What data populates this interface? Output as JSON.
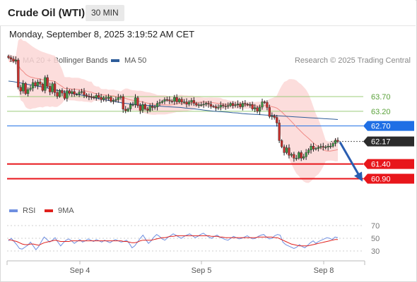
{
  "header": {
    "instrument": "Crude Oil (WTI)",
    "timeframe": "30 MIN",
    "datetime": "Monday, September 8, 2025 3:19:52 AM CET"
  },
  "main_legend": [
    {
      "label": "MA 20 + Bollinger Bands",
      "color": "#f08a86"
    },
    {
      "label": "MA 50",
      "color": "#2e5d9a"
    }
  ],
  "credit": "Research © 2025 Trading Central",
  "rsi_legend": [
    {
      "label": "RSI",
      "color": "#6f8fe0"
    },
    {
      "label": "9MA",
      "color": "#e0201c"
    }
  ],
  "chart_data": [
    {
      "type": "line",
      "subtype": "candlestick",
      "ylim": [
        60.55,
        64.35
      ],
      "xlabel": "",
      "ylabel": "",
      "x_tick_labels": [
        "Sep 4",
        "Sep 5",
        "Sep 8"
      ],
      "price_levels": [
        {
          "value": 63.7,
          "label": "63.70",
          "color": "#9ccc7a",
          "kind": "resistance"
        },
        {
          "value": 63.2,
          "label": "63.20",
          "color": "#9ccc7a",
          "kind": "resistance"
        },
        {
          "value": 62.7,
          "label": "62.70",
          "color": "#1f6fe5",
          "kind": "pivot"
        },
        {
          "value": 62.17,
          "label": "62.17",
          "color": "#2b2b2b",
          "kind": "last"
        },
        {
          "value": 61.4,
          "label": "61.40",
          "color": "#e8161b",
          "kind": "support"
        },
        {
          "value": 60.9,
          "label": "60.90",
          "color": "#e8161b",
          "kind": "support"
        }
      ],
      "forecast_arrow": {
        "from": 62.17,
        "to": 60.9,
        "color": "#2a5db0"
      },
      "closes": [
        65.03,
        64.98,
        64.91,
        64.95,
        64.02,
        63.89,
        64.15,
        63.8,
        63.94,
        63.99,
        64.18,
        64.07,
        64.2,
        64.13,
        63.91,
        64.35,
        64.05,
        63.86,
        64.14,
        63.84,
        63.71,
        63.91,
        63.82,
        63.64,
        63.9,
        63.81,
        63.87,
        63.78,
        63.78,
        63.85,
        63.87,
        63.76,
        63.72,
        63.7,
        63.68,
        63.66,
        63.74,
        63.67,
        63.6,
        63.66,
        63.64,
        63.68,
        63.54,
        63.57,
        63.6,
        63.67,
        63.7,
        63.27,
        63.22,
        63.28,
        63.43,
        63.43,
        63.66,
        63.39,
        63.23,
        63.43,
        63.28,
        63.23,
        63.37,
        63.33,
        63.35,
        63.47,
        63.5,
        63.54,
        63.6,
        63.59,
        63.55,
        63.54,
        63.67,
        63.52,
        63.61,
        63.51,
        63.52,
        63.44,
        63.52,
        63.57,
        63.47,
        63.41,
        63.42,
        63.42,
        63.44,
        63.47,
        63.44,
        63.37,
        63.36,
        63.31,
        63.34,
        63.41,
        63.38,
        63.37,
        63.39,
        63.47,
        63.39,
        63.42,
        63.45,
        63.35,
        63.47,
        63.44,
        63.42,
        63.43,
        63.28,
        63.32,
        63.2,
        63.34,
        63.52,
        63.5,
        63.33,
        63.02,
        63.04,
        62.99,
        62.8,
        62.2,
        61.99,
        61.79,
        61.95,
        61.7,
        61.73,
        61.6,
        61.6,
        61.79,
        61.6,
        61.65,
        61.79,
        61.88,
        62.01,
        61.91,
        61.93,
        61.97,
        62.0,
        61.97,
        61.98,
        62.01,
        62.01,
        62.1,
        62.21,
        62.17
      ],
      "ma50": [
        64.23,
        64.21,
        64.18,
        64.15,
        64.12,
        64.09,
        64.06,
        64.03,
        64.0,
        63.96,
        63.92,
        63.89,
        63.85,
        63.82,
        63.79,
        63.76,
        63.73,
        63.69,
        63.66,
        63.63,
        63.6,
        63.57,
        63.54,
        63.51,
        63.48,
        63.46,
        63.44,
        63.42,
        63.41,
        63.4,
        63.39,
        63.38,
        63.37,
        63.36,
        63.35,
        63.34,
        63.33,
        63.31,
        63.3,
        63.28,
        63.26,
        63.24,
        63.22,
        63.2,
        63.19,
        63.18,
        63.17,
        63.15,
        63.14,
        63.12,
        63.11,
        63.1,
        63.09,
        63.08,
        63.07,
        63.06,
        63.05,
        63.04,
        63.03,
        63.02,
        63.01,
        63.0,
        62.99,
        62.98,
        62.97,
        62.96,
        62.95,
        62.94,
        62.93,
        62.92
      ],
      "rsi": {
        "ylim": [
          20,
          80
        ],
        "levels": [
          70,
          50,
          30
        ],
        "tick_labels": [
          "70",
          "50",
          "30"
        ],
        "rsi_values": [
          46,
          50,
          45,
          40,
          34,
          33,
          36,
          39,
          44,
          38,
          32,
          37,
          45,
          52,
          48,
          44,
          47,
          51,
          44,
          38,
          43,
          47,
          49,
          46,
          42,
          45,
          48,
          44,
          46,
          49,
          47,
          45,
          48,
          46,
          44,
          47,
          45,
          43,
          46,
          48,
          46,
          44,
          45,
          47,
          42,
          35,
          38,
          44,
          50,
          55,
          48,
          42,
          46,
          52,
          56,
          53,
          49,
          47,
          51,
          54,
          57,
          55,
          52,
          50,
          53,
          55,
          57,
          54,
          51,
          53,
          56,
          58,
          55,
          52,
          50,
          53,
          55,
          52,
          50,
          48,
          47,
          50,
          53,
          51,
          49,
          50,
          52,
          54,
          51,
          49,
          50,
          53,
          55,
          56,
          52,
          49,
          50,
          54,
          56,
          55,
          44,
          40,
          38,
          36,
          34,
          36,
          40,
          37,
          35,
          39,
          43,
          46,
          42,
          45,
          47,
          49,
          51,
          50,
          48,
          52,
          51
        ],
        "ma9_values": [
          48,
          47,
          46,
          45,
          43,
          41,
          40,
          40,
          41,
          41,
          40,
          39,
          41,
          43,
          44,
          45,
          46,
          47,
          46,
          45,
          45,
          45,
          45,
          46,
          46,
          46,
          46,
          46,
          46,
          46,
          46,
          46,
          46,
          46,
          46,
          46,
          46,
          46,
          46,
          46,
          46,
          46,
          45,
          45,
          44,
          43,
          43,
          44,
          46,
          47,
          47,
          47,
          47,
          48,
          49,
          50,
          51,
          51,
          52,
          53,
          53,
          54,
          54,
          54,
          54,
          54,
          54,
          54,
          54,
          54,
          54,
          54,
          54,
          54,
          53,
          53,
          53,
          52,
          52,
          51,
          51,
          51,
          51,
          51,
          51,
          51,
          51,
          51,
          51,
          51,
          51,
          52,
          52,
          52,
          52,
          52,
          52,
          51,
          51,
          49,
          47,
          45,
          43,
          41,
          40,
          39,
          38,
          38,
          38,
          38,
          39,
          40,
          41,
          42,
          43,
          44,
          45,
          46,
          47,
          48,
          48
        ]
      }
    }
  ]
}
